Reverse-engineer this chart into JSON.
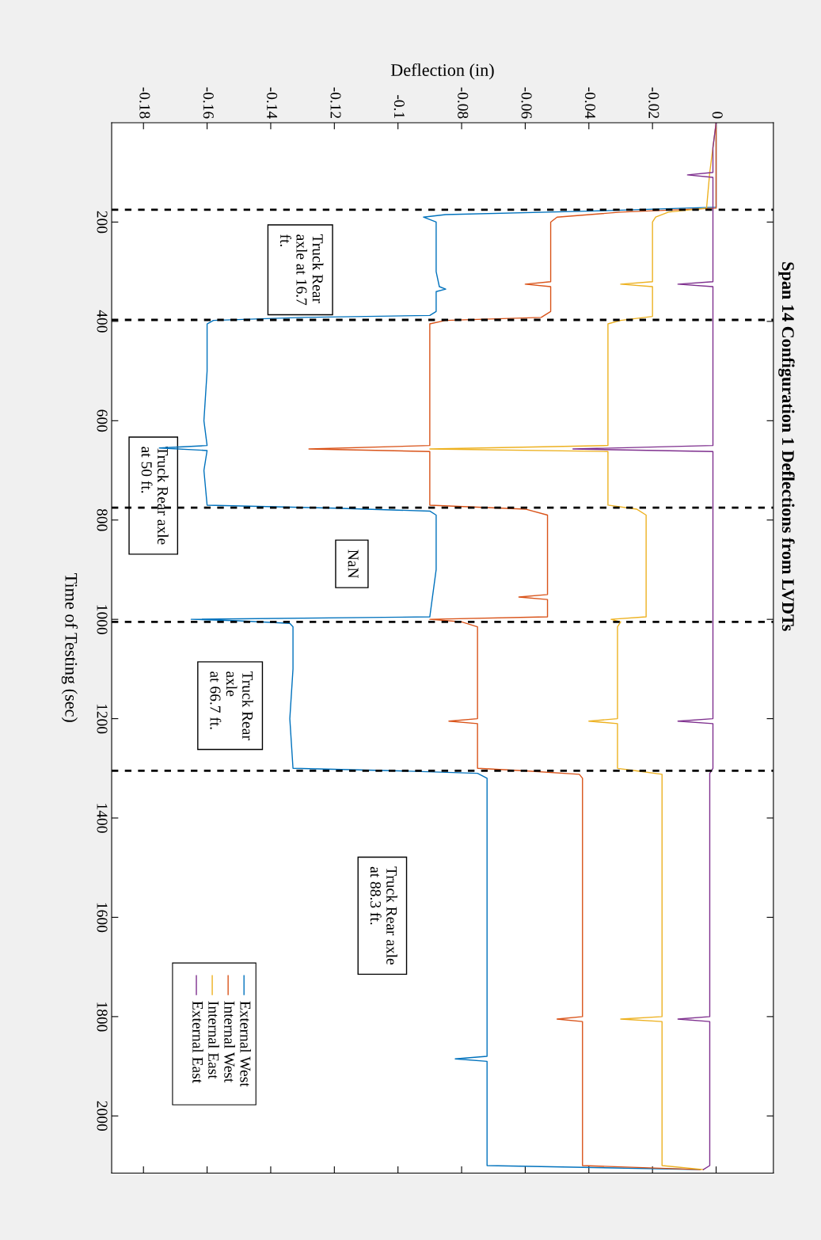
{
  "chart_data": {
    "type": "line",
    "title": "Span 14 Configuration 1 Deflections from LVDTs",
    "xlabel": "Deflection (in)",
    "ylabel": "Time of Testing (sec)",
    "ylim": [
      2115,
      0
    ],
    "yticks": [
      200,
      400,
      600,
      800,
      1000,
      1200,
      1400,
      1600,
      1800,
      2000
    ],
    "xlim": [
      -0.19,
      0.018
    ],
    "xticks": [
      -0.18,
      -0.16,
      -0.14,
      -0.12,
      -0.1,
      -0.08,
      -0.06,
      -0.04,
      -0.02,
      0
    ],
    "grid": false,
    "legend": "bottom left",
    "line_style": "solid",
    "marker": "none",
    "series": [
      {
        "name": "External West",
        "color": "#0072bd",
        "values": [
          0,
          170,
          178,
          185,
          190,
          200,
          300,
          330,
          335,
          340,
          380,
          388,
          392,
          398,
          405,
          500,
          600,
          650,
          655,
          660,
          700,
          770,
          776,
          782,
          790,
          900,
          995,
          1000,
          1003,
          1008,
          1015,
          1100,
          1200,
          1300,
          1305,
          1310,
          1320,
          1500,
          1700,
          1880,
          1885,
          1890,
          2000,
          2100,
          2108
        ],
        "x": [
          0,
          0,
          -0.04,
          -0.085,
          -0.092,
          -0.088,
          -0.088,
          -0.087,
          -0.085,
          -0.088,
          -0.088,
          -0.09,
          -0.13,
          -0.158,
          -0.16,
          -0.16,
          -0.161,
          -0.16,
          -0.175,
          -0.16,
          -0.161,
          -0.16,
          -0.12,
          -0.09,
          -0.088,
          -0.088,
          -0.09,
          -0.165,
          -0.15,
          -0.134,
          -0.133,
          -0.133,
          -0.134,
          -0.133,
          -0.1,
          -0.075,
          -0.072,
          -0.072,
          -0.072,
          -0.072,
          -0.082,
          -0.072,
          -0.072,
          -0.072,
          -0.005
        ]
      },
      {
        "name": "Internal West",
        "color": "#d95319",
        "values": [
          0,
          172,
          180,
          190,
          200,
          300,
          320,
          325,
          330,
          380,
          392,
          398,
          405,
          500,
          600,
          650,
          657,
          662,
          700,
          770,
          778,
          790,
          900,
          950,
          955,
          960,
          995,
          1000,
          1005,
          1015,
          1100,
          1200,
          1205,
          1210,
          1300,
          1305,
          1312,
          1320,
          1400,
          1500,
          1600,
          1800,
          1805,
          1810,
          2000,
          2100,
          2108
        ],
        "x": [
          0,
          0,
          -0.03,
          -0.05,
          -0.052,
          -0.052,
          -0.052,
          -0.06,
          -0.052,
          -0.052,
          -0.055,
          -0.085,
          -0.09,
          -0.09,
          -0.09,
          -0.09,
          -0.128,
          -0.09,
          -0.09,
          -0.09,
          -0.06,
          -0.053,
          -0.053,
          -0.053,
          -0.062,
          -0.053,
          -0.053,
          -0.09,
          -0.08,
          -0.075,
          -0.075,
          -0.075,
          -0.084,
          -0.075,
          -0.075,
          -0.06,
          -0.043,
          -0.042,
          -0.042,
          -0.042,
          -0.042,
          -0.042,
          -0.05,
          -0.042,
          -0.042,
          -0.042,
          -0.005
        ]
      },
      {
        "name": "Internal East",
        "color": "#edb120",
        "values": [
          0,
          100,
          172,
          180,
          190,
          200,
          300,
          320,
          325,
          330,
          390,
          398,
          405,
          500,
          600,
          650,
          657,
          662,
          700,
          770,
          778,
          790,
          900,
          995,
          1000,
          1005,
          1015,
          1100,
          1200,
          1205,
          1210,
          1300,
          1305,
          1312,
          1320,
          1500,
          1700,
          1800,
          1805,
          1810,
          2000,
          2100,
          2108
        ],
        "x": [
          0,
          -0.002,
          -0.003,
          -0.015,
          -0.019,
          -0.02,
          -0.02,
          -0.02,
          -0.03,
          -0.02,
          -0.02,
          -0.03,
          -0.034,
          -0.034,
          -0.034,
          -0.034,
          -0.09,
          -0.034,
          -0.034,
          -0.034,
          -0.025,
          -0.022,
          -0.022,
          -0.022,
          -0.033,
          -0.03,
          -0.031,
          -0.031,
          -0.031,
          -0.04,
          -0.031,
          -0.031,
          -0.025,
          -0.017,
          -0.017,
          -0.017,
          -0.017,
          -0.017,
          -0.03,
          -0.017,
          -0.017,
          -0.017,
          -0.004
        ]
      },
      {
        "name": "External East",
        "color": "#7e2f8e",
        "values": [
          0,
          50,
          100,
          105,
          110,
          200,
          300,
          320,
          325,
          330,
          400,
          500,
          600,
          650,
          657,
          662,
          700,
          800,
          900,
          1000,
          1100,
          1200,
          1205,
          1210,
          1300,
          1310,
          1500,
          1700,
          1800,
          1805,
          1810,
          2000,
          2100,
          2108
        ],
        "x": [
          0,
          -0.001,
          -0.001,
          -0.009,
          -0.001,
          -0.001,
          -0.001,
          -0.001,
          -0.012,
          -0.001,
          -0.001,
          -0.001,
          -0.001,
          -0.001,
          -0.045,
          -0.001,
          -0.001,
          -0.001,
          -0.001,
          -0.001,
          -0.001,
          -0.001,
          -0.012,
          -0.001,
          -0.001,
          -0.002,
          -0.002,
          -0.002,
          -0.002,
          -0.012,
          -0.002,
          -0.002,
          -0.002,
          -0.004
        ]
      }
    ],
    "ref_lines": [
      {
        "axis": "y",
        "value": 175,
        "color": "#000000",
        "line_style": "dashed"
      },
      {
        "axis": "y",
        "value": 397,
        "color": "#000000",
        "line_style": "dashed"
      },
      {
        "axis": "y",
        "value": 775,
        "color": "#000000",
        "line_style": "dashed"
      },
      {
        "axis": "y",
        "value": 1005,
        "color": "#000000",
        "line_style": "dashed"
      },
      {
        "axis": "y",
        "value": 1305,
        "color": "#000000",
        "line_style": "dashed"
      }
    ],
    "annotations": [
      "Truck Rear\naxle at 16.7\nft.",
      "Truck Rear axle\nat 50 ft.",
      "NaN",
      "Truck Rear\naxle\nat 66.7 ft.",
      "Truck Rear axle\nat 88.3 ft."
    ]
  }
}
